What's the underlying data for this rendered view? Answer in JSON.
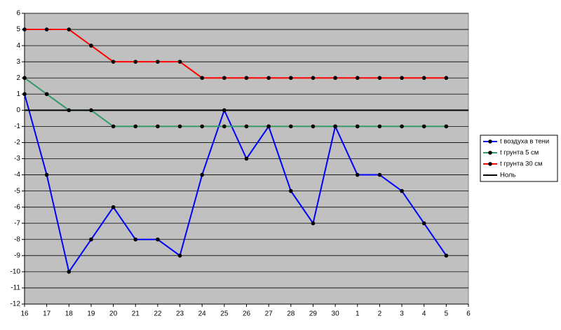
{
  "chart_data": {
    "type": "line",
    "categories": [
      "16",
      "17",
      "18",
      "19",
      "20",
      "21",
      "22",
      "23",
      "24",
      "25",
      "26",
      "27",
      "28",
      "29",
      "30",
      "1",
      "2",
      "3",
      "4",
      "5",
      "6"
    ],
    "ylim": [
      -12,
      6
    ],
    "yticks": [
      -12,
      -11,
      -10,
      -9,
      -8,
      -7,
      -6,
      -5,
      -4,
      -3,
      -2,
      -1,
      0,
      1,
      2,
      3,
      4,
      5,
      6
    ],
    "grid": true,
    "legend": "right",
    "series": [
      {
        "name": "t воздуха в тени",
        "color": "#0000ff",
        "marker": true,
        "values": [
          1,
          -4,
          -10,
          -8,
          -6,
          -8,
          -8,
          -9,
          -4,
          0,
          -3,
          -1,
          -5,
          -7,
          -1,
          -4,
          -4,
          -5,
          -7,
          -9,
          null
        ]
      },
      {
        "name": "t грунта 5 см",
        "color": "#339966",
        "marker": true,
        "values": [
          2,
          1,
          0,
          0,
          -1,
          -1,
          -1,
          -1,
          -1,
          -1,
          -1,
          -1,
          -1,
          -1,
          -1,
          -1,
          -1,
          -1,
          -1,
          -1,
          null
        ]
      },
      {
        "name": "t грунта 30 см",
        "color": "#ff0000",
        "marker": true,
        "values": [
          5,
          5,
          5,
          4,
          3,
          3,
          3,
          3,
          2,
          2,
          2,
          2,
          2,
          2,
          2,
          2,
          2,
          2,
          2,
          2,
          null
        ]
      },
      {
        "name": "Ноль",
        "color": "#000000",
        "marker": false,
        "values": [
          0,
          0,
          0,
          0,
          0,
          0,
          0,
          0,
          0,
          0,
          0,
          0,
          0,
          0,
          0,
          0,
          0,
          0,
          0,
          0,
          0
        ]
      }
    ]
  }
}
